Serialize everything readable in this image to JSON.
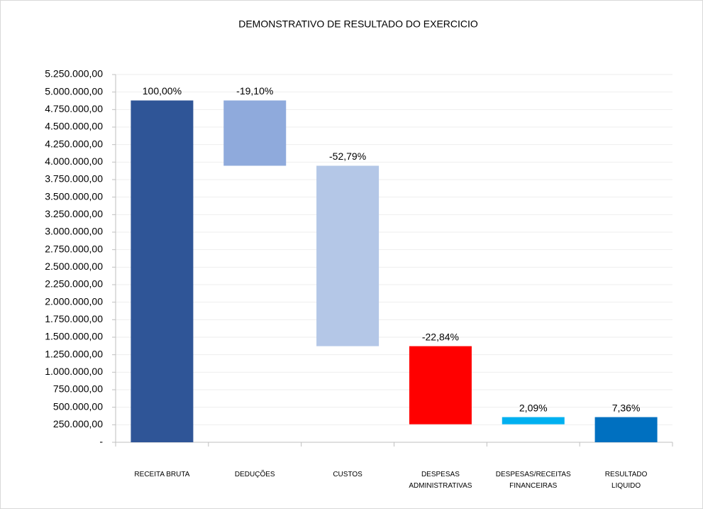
{
  "chart_data": {
    "type": "waterfall",
    "title": "DEMONSTRATIVO DE RESULTADO DO EXERCICIO",
    "categories": [
      "RECEITA BRUTA",
      "DEDUÇÕES",
      "CUSTOS",
      "DESPESAS\nADMINISTRATIVAS",
      "DESPESAS/RECEITAS\nFINANCEIRAS",
      "RESULTADO\nLIQUIDO"
    ],
    "measures": [
      "absolute",
      "relative",
      "relative",
      "relative",
      "relative",
      "total"
    ],
    "values": [
      4880000,
      -932000,
      -2576000,
      -1115000,
      102000,
      359000
    ],
    "percent_labels": [
      "100,00%",
      "-19,10%",
      "-52,79%",
      "-22,84%",
      "2,09%",
      "7,36%"
    ],
    "colors": [
      "#2F5597",
      "#8FAADC",
      "#B4C7E7",
      "#FF0000",
      "#00B0F0",
      "#0070C0"
    ],
    "ylim": [
      0,
      5250000
    ],
    "yticks": [
      {
        "value": 0,
        "label": "-"
      },
      {
        "value": 250000,
        "label": "250.000,00"
      },
      {
        "value": 500000,
        "label": "500.000,00"
      },
      {
        "value": 750000,
        "label": "750.000,00"
      },
      {
        "value": 1000000,
        "label": "1.000.000,00"
      },
      {
        "value": 1250000,
        "label": "1.250.000,00"
      },
      {
        "value": 1500000,
        "label": "1.500.000,00"
      },
      {
        "value": 1750000,
        "label": "1.750.000,00"
      },
      {
        "value": 2000000,
        "label": "2.000.000,00"
      },
      {
        "value": 2250000,
        "label": "2.250.000,00"
      },
      {
        "value": 2500000,
        "label": "2.500.000,00"
      },
      {
        "value": 2750000,
        "label": "2.750.000,00"
      },
      {
        "value": 3000000,
        "label": "3.000.000,00"
      },
      {
        "value": 3250000,
        "label": "3.250.000,00"
      },
      {
        "value": 3500000,
        "label": "3.500.000,00"
      },
      {
        "value": 3750000,
        "label": "3.750.000,00"
      },
      {
        "value": 4000000,
        "label": "4.000.000,00"
      },
      {
        "value": 4250000,
        "label": "4.250.000,00"
      },
      {
        "value": 4500000,
        "label": "4.500.000,00"
      },
      {
        "value": 4750000,
        "label": "4.750.000,00"
      },
      {
        "value": 5000000,
        "label": "5.000.000,00"
      },
      {
        "value": 5250000,
        "label": "5.250.000,00"
      }
    ],
    "grid": true
  }
}
